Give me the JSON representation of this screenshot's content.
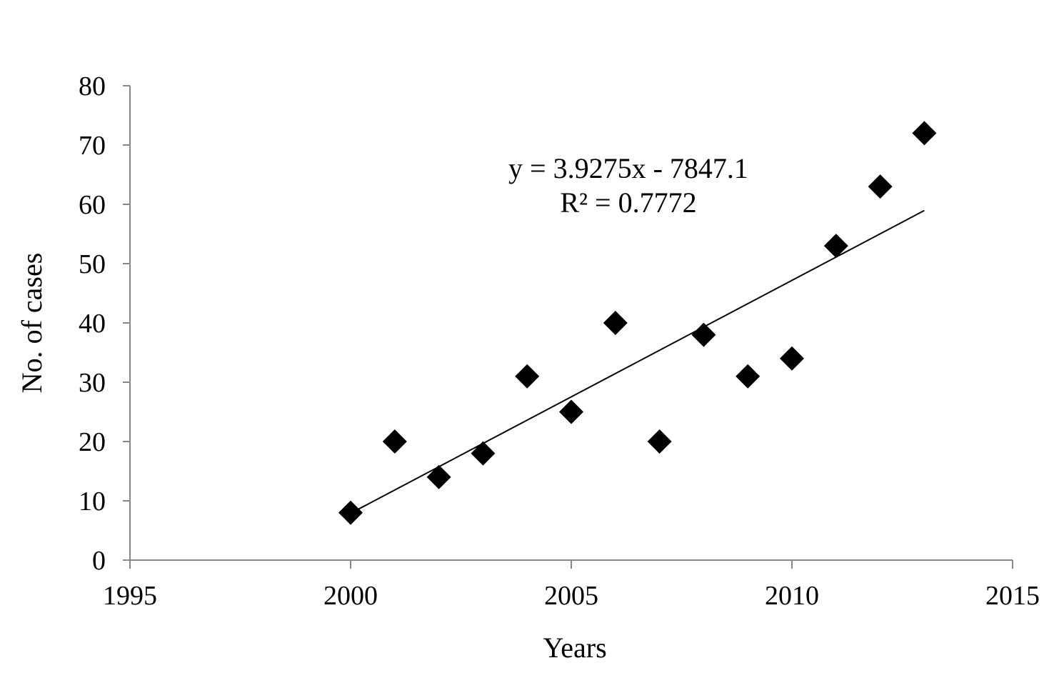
{
  "chart_data": {
    "type": "scatter",
    "title": "",
    "xlabel": "Years",
    "ylabel": "No. of cases",
    "xlim": [
      1995,
      2015
    ],
    "ylim": [
      0,
      80
    ],
    "xticks": [
      1995,
      2000,
      2005,
      2010,
      2015
    ],
    "yticks": [
      0,
      10,
      20,
      30,
      40,
      50,
      60,
      70,
      80
    ],
    "grid": false,
    "legend": "none",
    "marker": "diamond",
    "marker_color": "#000000",
    "series": [
      {
        "x": [
          2000,
          2001,
          2002,
          2003,
          2004,
          2005,
          2006,
          2007,
          2008,
          2009,
          2010,
          2011,
          2012,
          2013
        ],
        "y": [
          8,
          20,
          14,
          18,
          31,
          25,
          40,
          20,
          38,
          31,
          34,
          53,
          63,
          72
        ]
      }
    ],
    "trendline": {
      "type": "linear",
      "slope": 3.9275,
      "intercept": -7847.1,
      "x_range": [
        2000,
        2013
      ],
      "color": "#000000"
    },
    "annotations": [
      "y = 3.9275x - 7847.1",
      "R² = 0.7772"
    ]
  }
}
